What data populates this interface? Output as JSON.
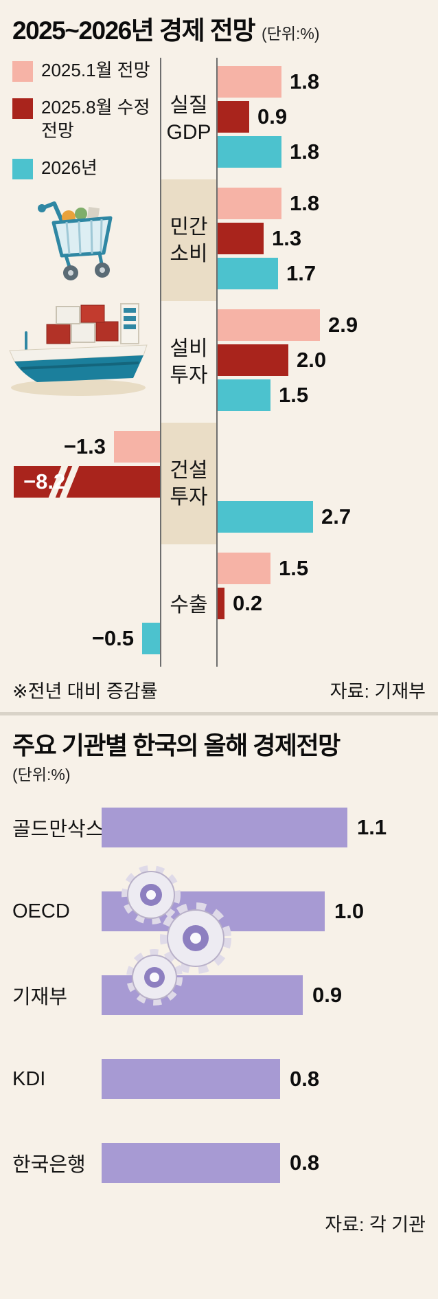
{
  "page": {
    "background": "#f7f1e8"
  },
  "chart1": {
    "title": "2025~2026년 경제 전망",
    "unit": "(단위:%)",
    "legend": [
      {
        "label": "2025.1월 전망",
        "color": "#f6b3a6"
      },
      {
        "label": "2025.8월 수정 전망",
        "color": "#a9241c"
      },
      {
        "label": "2026년",
        "color": "#4cc2ce"
      }
    ],
    "footnote": "※전년 대비 증감률",
    "source": "자료: 기재부",
    "illustrations": [
      "shopping-cart",
      "cargo-ship"
    ],
    "chart_data": {
      "type": "bar",
      "orientation": "horizontal",
      "value_unit": "%",
      "categories": [
        "실질 GDP",
        "민간 소비",
        "설비 투자",
        "건설 투자",
        "수출"
      ],
      "series": [
        {
          "name": "2025.1월 전망",
          "color": "#f6b3a6",
          "values": [
            1.8,
            1.8,
            2.9,
            -1.3,
            1.5
          ]
        },
        {
          "name": "2025.8월 수정 전망",
          "color": "#a9241c",
          "values": [
            0.9,
            1.3,
            2.0,
            -8.2,
            0.2
          ]
        },
        {
          "name": "2026년",
          "color": "#4cc2ce",
          "values": [
            1.8,
            1.7,
            1.5,
            2.7,
            -0.5
          ]
        }
      ],
      "truncated_values": [
        -8.2
      ],
      "highlight_blocks": [
        "민간 소비",
        "건설 투자"
      ],
      "highlight_color": "#eaddc6"
    }
  },
  "chart2": {
    "title": "주요 기관별 한국의 올해 경제전망",
    "unit": "(단위:%)",
    "source": "자료: 각 기관",
    "illustrations": [
      "gears"
    ],
    "chart_data": {
      "type": "bar",
      "orientation": "horizontal",
      "value_unit": "%",
      "categories": [
        "골드만삭스",
        "OECD",
        "기재부",
        "KDI",
        "한국은행"
      ],
      "values": [
        1.1,
        1.0,
        0.9,
        0.8,
        0.8
      ],
      "bar_color": "#a79ad3"
    }
  }
}
